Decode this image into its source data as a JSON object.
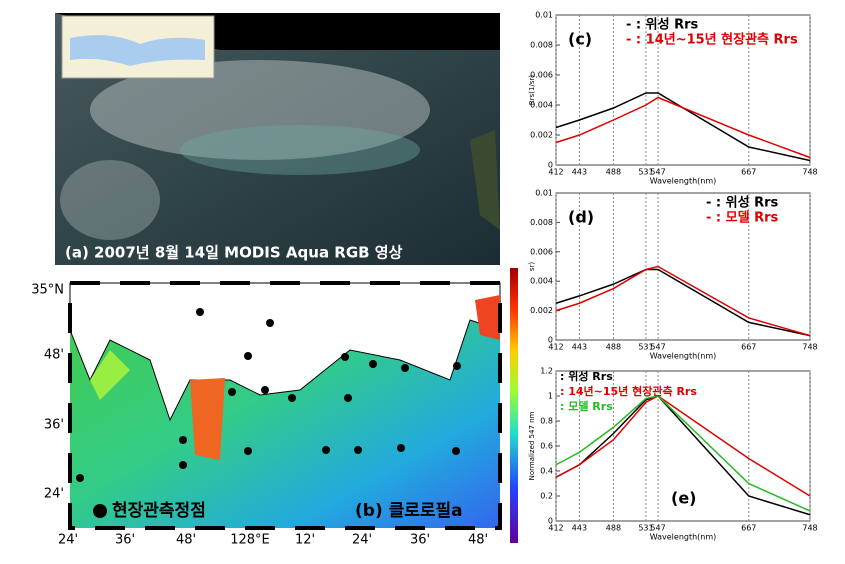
{
  "panel_a": {
    "label": "(a) 2007년 8월 14일 MODIS Aqua RGB 영상"
  },
  "panel_b": {
    "label": "(b) 클로로필a",
    "legend": "현장관측정점",
    "lat_ticks": [
      "35°N",
      "48'",
      "36'",
      "24'"
    ],
    "lon_ticks": [
      "24'",
      "36'",
      "48'",
      "128°E",
      "12'",
      "24'",
      "36'",
      "48'"
    ]
  },
  "chart_data": [
    {
      "type": "line",
      "panel": "(c)",
      "xlabel": "Wavelength(nm)",
      "ylabel": "Rrs(1/sr)",
      "x": [
        412,
        443,
        488,
        531,
        547,
        667,
        748
      ],
      "xlim": [
        412,
        748
      ],
      "xticks": [
        412,
        443,
        488,
        531,
        547,
        667,
        748
      ],
      "ylim": [
        0,
        0.01
      ],
      "yticks": [
        0,
        0.002,
        0.004,
        0.006,
        0.008,
        0.01
      ],
      "series": [
        {
          "name": "- : 위성 Rrs",
          "color": "#000000",
          "values": [
            0.0025,
            0.003,
            0.0038,
            0.0048,
            0.0048,
            0.0012,
            0.0003
          ]
        },
        {
          "name": "- : 14년~15년 현장관측 Rrs",
          "color": "#e00000",
          "values": [
            0.0015,
            0.002,
            0.003,
            0.004,
            0.0045,
            0.002,
            0.0005
          ]
        }
      ]
    },
    {
      "type": "line",
      "panel": "(d)",
      "xlabel": "Wavelength(nm)",
      "ylabel": "sr)",
      "x": [
        412,
        443,
        488,
        531,
        547,
        667,
        748
      ],
      "xlim": [
        412,
        748
      ],
      "xticks": [
        412,
        443,
        488,
        531,
        547,
        667,
        748
      ],
      "ylim": [
        0,
        0.01
      ],
      "yticks": [
        0,
        0.002,
        0.004,
        0.006,
        0.008,
        0.01
      ],
      "series": [
        {
          "name": "- : 위성 Rrs",
          "color": "#000000",
          "values": [
            0.0025,
            0.003,
            0.0038,
            0.0048,
            0.0048,
            0.0012,
            0.0003
          ]
        },
        {
          "name": "- : 모델 Rrs",
          "color": "#e00000",
          "values": [
            0.002,
            0.0025,
            0.0035,
            0.0048,
            0.005,
            0.0015,
            0.0003
          ]
        }
      ]
    },
    {
      "type": "line",
      "panel": "(e)",
      "xlabel": "Wavelength(nm)",
      "ylabel": "Normalized 547 nm",
      "x": [
        412,
        443,
        488,
        531,
        547,
        667,
        748
      ],
      "xlim": [
        412,
        748
      ],
      "xticks": [
        412,
        443,
        488,
        531,
        547,
        667,
        748
      ],
      "ylim": [
        0,
        1.2
      ],
      "yticks": [
        0,
        0.2,
        0.4,
        0.6,
        0.8,
        1,
        1.2
      ],
      "series": [
        {
          "name": ": 위성 Rrs",
          "color": "#000000",
          "values": [
            0.35,
            0.45,
            0.7,
            0.97,
            1,
            0.2,
            0.05
          ]
        },
        {
          "name": ": 14년~15년 현장관측 Rrs",
          "color": "#e00000",
          "values": [
            0.35,
            0.45,
            0.65,
            0.95,
            1,
            0.5,
            0.2
          ]
        },
        {
          "name": ": 모델 Rrs",
          "color": "#22bb22",
          "values": [
            0.45,
            0.55,
            0.75,
            0.98,
            1,
            0.3,
            0.08
          ]
        }
      ]
    }
  ]
}
